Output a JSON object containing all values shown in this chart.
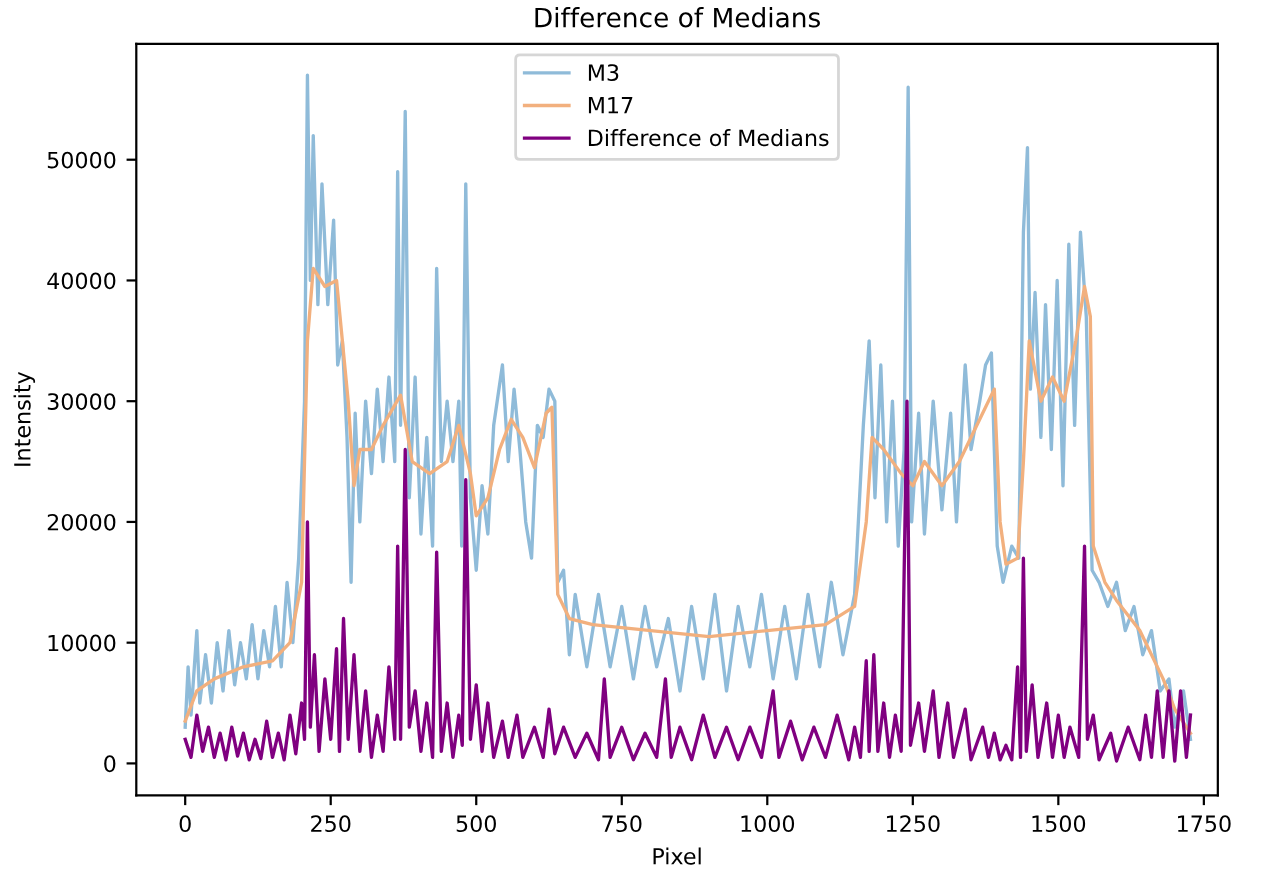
{
  "chart_data": {
    "type": "line",
    "title": "Difference of Medians",
    "xlabel": "Pixel",
    "ylabel": "Intensity",
    "xlim": [
      -84,
      1774
    ],
    "ylim": [
      -2650,
      59600
    ],
    "xticks": [
      0,
      250,
      500,
      750,
      1000,
      1250,
      1500,
      1750
    ],
    "yticks": [
      0,
      10000,
      20000,
      30000,
      40000,
      50000
    ],
    "grid": false,
    "legend": "top",
    "marker": "none",
    "line_style": "solid",
    "series": [
      {
        "name": "M3",
        "color": "#8fbbd9",
        "x": [
          0,
          5,
          10,
          20,
          25,
          35,
          45,
          55,
          65,
          75,
          85,
          95,
          105,
          115,
          125,
          135,
          145,
          155,
          165,
          175,
          185,
          195,
          205,
          210,
          215,
          220,
          228,
          235,
          245,
          255,
          262,
          270,
          278,
          285,
          292,
          300,
          310,
          320,
          330,
          340,
          350,
          360,
          365,
          370,
          378,
          385,
          395,
          405,
          415,
          425,
          432,
          440,
          450,
          460,
          470,
          475,
          482,
          490,
          500,
          510,
          520,
          530,
          545,
          555,
          565,
          575,
          585,
          595,
          605,
          615,
          625,
          635,
          640,
          650,
          660,
          670,
          690,
          710,
          730,
          750,
          770,
          790,
          810,
          830,
          850,
          870,
          890,
          910,
          930,
          950,
          970,
          990,
          1010,
          1030,
          1050,
          1070,
          1090,
          1110,
          1130,
          1150,
          1165,
          1175,
          1185,
          1195,
          1205,
          1215,
          1225,
          1235,
          1242,
          1248,
          1260,
          1270,
          1285,
          1300,
          1315,
          1325,
          1340,
          1350,
          1365,
          1375,
          1385,
          1395,
          1405,
          1420,
          1432,
          1440,
          1447,
          1452,
          1460,
          1470,
          1478,
          1488,
          1498,
          1508,
          1518,
          1528,
          1538,
          1548,
          1558,
          1570,
          1585,
          1600,
          1615,
          1630,
          1645,
          1660,
          1675,
          1690,
          1700,
          1715,
          1727
        ],
        "values": [
          3000,
          8000,
          4000,
          11000,
          5000,
          9000,
          5000,
          10000,
          6000,
          11000,
          6500,
          10000,
          7000,
          11500,
          7000,
          11000,
          8000,
          13000,
          8000,
          15000,
          10000,
          17000,
          30000,
          57000,
          40000,
          52000,
          38000,
          48000,
          38000,
          45000,
          33000,
          35000,
          27000,
          15000,
          29000,
          20000,
          30000,
          24000,
          31000,
          25000,
          32000,
          25000,
          49000,
          28000,
          54000,
          22000,
          32000,
          19000,
          27000,
          18000,
          41000,
          25000,
          30000,
          25000,
          30000,
          18000,
          48000,
          22000,
          16000,
          23000,
          19000,
          28000,
          33000,
          25000,
          31000,
          26000,
          20000,
          17000,
          28000,
          27000,
          31000,
          30000,
          15000,
          16000,
          9000,
          14000,
          8000,
          14000,
          8000,
          13000,
          7000,
          13000,
          8000,
          12000,
          6000,
          13000,
          7000,
          14000,
          6000,
          13000,
          8000,
          14000,
          7000,
          13000,
          7000,
          14000,
          8000,
          15000,
          9000,
          14000,
          28000,
          35000,
          22000,
          33000,
          20000,
          30000,
          18000,
          26000,
          56000,
          20000,
          29000,
          19000,
          30000,
          21000,
          29000,
          20000,
          33000,
          26000,
          30000,
          33000,
          34000,
          18000,
          15000,
          18000,
          17000,
          44000,
          51000,
          31000,
          39000,
          27000,
          38000,
          26000,
          40000,
          23000,
          43000,
          28000,
          44000,
          37000,
          16000,
          15000,
          13000,
          15000,
          11000,
          13000,
          9000,
          11000,
          6000,
          7000,
          3000,
          6000,
          2000
        ]
      },
      {
        "name": "M17",
        "color": "#f2b07e",
        "x": [
          0,
          20,
          50,
          100,
          150,
          180,
          200,
          210,
          220,
          240,
          260,
          280,
          290,
          300,
          320,
          340,
          370,
          390,
          420,
          450,
          470,
          490,
          500,
          520,
          540,
          560,
          580,
          600,
          620,
          630,
          640,
          660,
          700,
          800,
          900,
          1000,
          1100,
          1150,
          1170,
          1180,
          1200,
          1230,
          1250,
          1270,
          1300,
          1330,
          1360,
          1390,
          1400,
          1410,
          1430,
          1440,
          1450,
          1470,
          1490,
          1510,
          1530,
          1545,
          1555,
          1560,
          1580,
          1600,
          1640,
          1680,
          1700,
          1727
        ],
        "values": [
          3500,
          6000,
          7000,
          8000,
          8500,
          10000,
          15000,
          35000,
          41000,
          39500,
          40000,
          30000,
          23000,
          26000,
          26000,
          28000,
          30500,
          25000,
          24000,
          25000,
          28000,
          24000,
          20500,
          22000,
          26000,
          28500,
          27000,
          24500,
          29000,
          29500,
          14000,
          12000,
          11500,
          11000,
          10500,
          11000,
          11500,
          13000,
          20000,
          27000,
          26000,
          24000,
          23000,
          25000,
          23000,
          25000,
          28000,
          31000,
          20000,
          16500,
          17000,
          25000,
          35000,
          30000,
          32000,
          30000,
          35000,
          39500,
          37000,
          18000,
          15000,
          13500,
          11000,
          7000,
          4500,
          2500
        ]
      },
      {
        "name": "Difference of Medians",
        "color": "#800080",
        "x": [
          0,
          10,
          20,
          30,
          40,
          50,
          60,
          70,
          80,
          90,
          100,
          110,
          120,
          130,
          140,
          150,
          160,
          170,
          180,
          190,
          200,
          205,
          210,
          215,
          222,
          230,
          240,
          250,
          260,
          265,
          272,
          280,
          290,
          300,
          310,
          320,
          330,
          340,
          350,
          360,
          365,
          370,
          378,
          385,
          395,
          405,
          415,
          425,
          432,
          440,
          450,
          460,
          470,
          476,
          482,
          490,
          500,
          510,
          520,
          530,
          545,
          555,
          570,
          580,
          600,
          615,
          625,
          635,
          650,
          670,
          690,
          710,
          720,
          730,
          750,
          770,
          790,
          810,
          825,
          835,
          850,
          870,
          890,
          910,
          930,
          950,
          970,
          990,
          1010,
          1020,
          1040,
          1060,
          1080,
          1100,
          1120,
          1140,
          1150,
          1160,
          1170,
          1175,
          1183,
          1190,
          1200,
          1210,
          1220,
          1230,
          1240,
          1246,
          1260,
          1270,
          1285,
          1295,
          1310,
          1320,
          1340,
          1350,
          1370,
          1380,
          1390,
          1400,
          1410,
          1420,
          1430,
          1435,
          1440,
          1445,
          1455,
          1465,
          1480,
          1490,
          1500,
          1510,
          1520,
          1535,
          1545,
          1550,
          1560,
          1570,
          1590,
          1600,
          1620,
          1640,
          1650,
          1660,
          1670,
          1680,
          1690,
          1700,
          1710,
          1720,
          1727
        ],
        "values": [
          2000,
          500,
          4000,
          1000,
          3000,
          500,
          2500,
          300,
          3000,
          600,
          2500,
          300,
          2000,
          400,
          3500,
          500,
          2500,
          300,
          4000,
          800,
          5000,
          2000,
          20000,
          3000,
          9000,
          1000,
          7000,
          2000,
          9500,
          1000,
          12000,
          2000,
          9000,
          1000,
          6000,
          500,
          4000,
          1000,
          8000,
          2000,
          18000,
          2000,
          26000,
          3000,
          6000,
          1000,
          5000,
          500,
          17500,
          1000,
          5000,
          500,
          4000,
          1500,
          23500,
          2000,
          6500,
          1000,
          5000,
          500,
          3500,
          500,
          4000,
          500,
          3000,
          500,
          4500,
          800,
          3000,
          500,
          2500,
          300,
          7000,
          500,
          3000,
          300,
          2500,
          500,
          7000,
          500,
          3000,
          300,
          4000,
          500,
          3000,
          300,
          3000,
          500,
          6000,
          500,
          3500,
          300,
          3000,
          500,
          4000,
          300,
          3000,
          500,
          8500,
          1000,
          9000,
          1000,
          5000,
          500,
          4000,
          1000,
          30000,
          1500,
          5000,
          1000,
          6000,
          500,
          5000,
          500,
          4500,
          300,
          3000,
          500,
          2500,
          300,
          1500,
          300,
          8000,
          500,
          17000,
          1000,
          6500,
          500,
          5000,
          500,
          4000,
          500,
          3000,
          500,
          18000,
          2000,
          4000,
          300,
          2500,
          200,
          3000,
          300,
          4000,
          500,
          6000,
          500,
          6000,
          200,
          6000,
          500,
          4000
        ]
      }
    ]
  }
}
